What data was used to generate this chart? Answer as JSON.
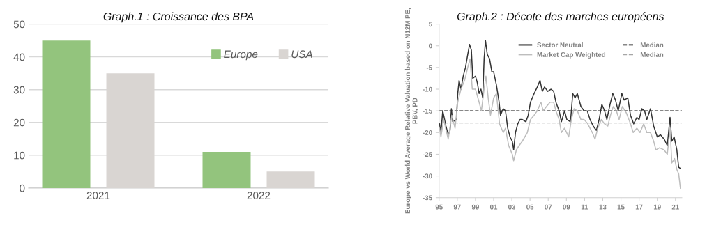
{
  "chart_data": [
    {
      "type": "bar",
      "title": "Graph.1 : Croissance des BPA",
      "categories": [
        "2021",
        "2022"
      ],
      "series": [
        {
          "name": "Europe",
          "color": "#93c47d",
          "values": [
            45,
            11
          ]
        },
        {
          "name": "USA",
          "color": "#d9d5d2",
          "values": [
            35,
            5
          ]
        }
      ],
      "ylim": [
        0,
        50
      ],
      "yticks": [
        0,
        10,
        20,
        30,
        40,
        50
      ],
      "grid": "y",
      "legend": "top right"
    },
    {
      "type": "line",
      "title": "Graph.2 : Décote des marches européens",
      "ylabel": "Europe vs World Average Relative Valuation based on N12M PE, PBV, PD",
      "series": [
        {
          "name": "Sector Neutral",
          "color": "#333333",
          "x": [
            1995.05,
            1995.2,
            1995.4,
            1995.75,
            1996.0,
            1996.2,
            1996.35,
            1996.5,
            1996.9,
            1997.05,
            1997.2,
            1997.4,
            1997.65,
            1997.9,
            1998.15,
            1998.35,
            1998.55,
            1998.7,
            1999.0,
            1999.2,
            1999.4,
            1999.6,
            1999.8,
            1999.95,
            2000.1,
            2000.3,
            2000.55,
            2000.8,
            2001.0,
            2001.3,
            2001.6,
            2001.75,
            2002.05,
            2002.3,
            2002.55,
            2002.8,
            2003.05,
            2003.2,
            2003.4,
            2003.65,
            2003.9,
            2004.15,
            2004.55,
            2004.8,
            2005.05,
            2005.45,
            2005.8,
            2006.1,
            2006.35,
            2006.6,
            2006.95,
            2007.3,
            2007.6,
            2007.85,
            2008.2,
            2008.45,
            2008.8,
            2009.05,
            2009.45,
            2009.7,
            2009.95,
            2010.2,
            2010.6,
            2010.95,
            2011.3,
            2011.6,
            2011.95,
            2012.3,
            2012.6,
            2012.9,
            2013.2,
            2013.45,
            2013.8,
            2014.1,
            2014.4,
            2014.7,
            2015.1,
            2015.35,
            2015.75,
            2016.05,
            2016.4,
            2016.75,
            2017.0,
            2017.3,
            2017.6,
            2017.85,
            2018.25,
            2018.6,
            2019.0,
            2019.35,
            2019.75,
            2020.1,
            2020.4,
            2020.6,
            2020.85,
            2021.15,
            2021.35,
            2021.55
          ],
          "values": [
            -18,
            -20,
            -15,
            -18.5,
            -20.5,
            -19.5,
            -14.5,
            -17.5,
            -17,
            -11,
            -8,
            -10,
            -7,
            -5,
            -2,
            0.3,
            -1,
            -7.5,
            -7,
            -8.5,
            -11,
            -10,
            -12,
            -3,
            1.2,
            -2,
            -3,
            -6,
            -6,
            -9,
            -13,
            -16,
            -14.5,
            -15,
            -19,
            -21,
            -22,
            -24,
            -20,
            -18,
            -17,
            -17,
            -17.5,
            -16,
            -13,
            -11,
            -9.5,
            -8,
            -10.5,
            -9.5,
            -10.5,
            -10,
            -10.5,
            -13,
            -15,
            -17.5,
            -15,
            -17,
            -17.5,
            -11,
            -12,
            -11,
            -14,
            -15,
            -15,
            -17,
            -18.5,
            -19.5,
            -17,
            -13.5,
            -15,
            -17,
            -13.5,
            -11,
            -12.5,
            -15,
            -11,
            -12.5,
            -12,
            -16,
            -18,
            -16.5,
            -17,
            -14.5,
            -15,
            -17,
            -14.5,
            -18.5,
            -21,
            -20.5,
            -21.5,
            -23,
            -16.5,
            -22,
            -21,
            -24,
            -28,
            -28.3
          ]
        },
        {
          "name": "Market Cap Weighted",
          "color": "#bdbdbd",
          "x": [
            1995.05,
            1995.2,
            1995.5,
            1996.0,
            1996.4,
            1996.75,
            1997.05,
            1997.4,
            1997.8,
            1998.15,
            1998.4,
            1998.65,
            1999.0,
            1999.4,
            1999.65,
            1999.95,
            2000.15,
            2000.4,
            2000.65,
            2001.0,
            2001.3,
            2001.65,
            2002.05,
            2002.3,
            2002.65,
            2003.05,
            2003.2,
            2003.5,
            2003.8,
            2004.15,
            2004.7,
            2005.05,
            2005.45,
            2005.8,
            2006.2,
            2006.45,
            2006.8,
            2007.2,
            2007.6,
            2007.85,
            2008.2,
            2008.45,
            2008.8,
            2009.25,
            2009.55,
            2009.85,
            2010.2,
            2010.6,
            2010.95,
            2011.35,
            2011.85,
            2012.15,
            2012.45,
            2012.85,
            2013.2,
            2013.55,
            2013.85,
            2014.15,
            2014.5,
            2014.8,
            2015.15,
            2015.6,
            2016.05,
            2016.35,
            2016.75,
            2017.1,
            2017.5,
            2017.85,
            2018.25,
            2018.6,
            2018.85,
            2019.25,
            2019.75,
            2020.1,
            2020.4,
            2020.6,
            2020.9,
            2021.15,
            2021.35,
            2021.55
          ],
          "values": [
            -19,
            -21,
            -17,
            -21.5,
            -16,
            -19,
            -13,
            -10,
            -8,
            -5,
            -3,
            -10,
            -10,
            -13,
            -15,
            -10,
            -7,
            -12,
            -16,
            -12,
            -11,
            -18,
            -20,
            -19,
            -23,
            -25,
            -26.5,
            -24,
            -23,
            -22,
            -20,
            -17,
            -16,
            -15,
            -13,
            -15,
            -14,
            -13,
            -13,
            -15,
            -17,
            -20,
            -19,
            -21,
            -17,
            -14.5,
            -15,
            -17,
            -17,
            -18,
            -20,
            -21.5,
            -19,
            -17,
            -18,
            -18.5,
            -16,
            -14,
            -15,
            -17,
            -14,
            -15.5,
            -18,
            -20,
            -19,
            -20,
            -18,
            -20,
            -20,
            -22,
            -24,
            -23.5,
            -24,
            -25,
            -19,
            -27,
            -26,
            -28.5,
            -29.5,
            -33
          ]
        }
      ],
      "ref_lines": [
        {
          "axis": "y",
          "value": -15,
          "label": "Median",
          "color": "#111111",
          "line_style": "dashed"
        },
        {
          "axis": "y",
          "value": -17.8,
          "label": "Median",
          "color": "#a6a6a6",
          "line_style": "dashed"
        }
      ],
      "xlim": [
        1995,
        2021.7
      ],
      "xticks": [
        {
          "value": 1995,
          "label": "95"
        },
        {
          "value": 1997,
          "label": "97"
        },
        {
          "value": 1999,
          "label": "99"
        },
        {
          "value": 2001,
          "label": "01"
        },
        {
          "value": 2003,
          "label": "03"
        },
        {
          "value": 2005,
          "label": "05"
        },
        {
          "value": 2007,
          "label": "07"
        },
        {
          "value": 2009,
          "label": "09"
        },
        {
          "value": 2011,
          "label": "11"
        },
        {
          "value": 2013,
          "label": "13"
        },
        {
          "value": 2015,
          "label": "15"
        },
        {
          "value": 2017,
          "label": "17"
        },
        {
          "value": 2019,
          "label": "19"
        },
        {
          "value": 2021,
          "label": "21"
        }
      ],
      "ylim": [
        -35,
        5
      ],
      "yticks": [
        -35,
        -30,
        -25,
        -20,
        -15,
        -10,
        -5,
        0,
        5
      ],
      "grid": false,
      "legend": "top right"
    }
  ]
}
